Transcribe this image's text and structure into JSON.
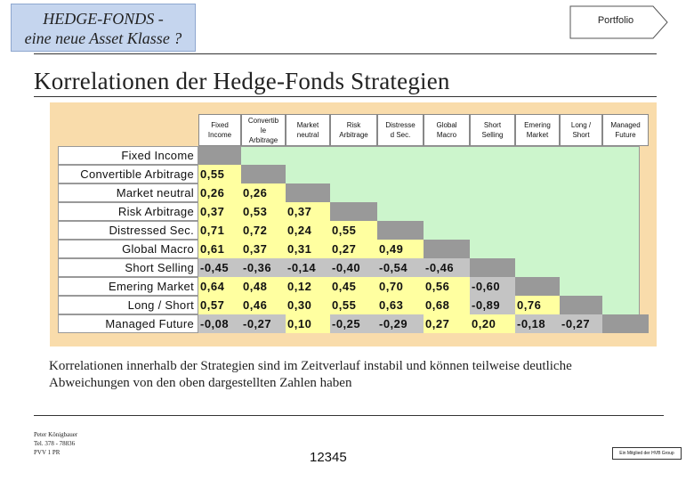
{
  "header": {
    "title_line1": "HEDGE-FONDS -",
    "title_line2": "eine neue Asset Klasse ?",
    "portfolio_label": "Portfolio"
  },
  "heading": "Korrelationen der Hedge-Fonds Strategien",
  "table": {
    "columns": [
      "Fixed\nIncome",
      "Convertib\nle\nArbitrage",
      "Market\nneutral",
      "Risk\nArbitrage",
      "Distresse\nd Sec.",
      "Global\nMacro",
      "Short\nSelling",
      "Emering\nMarket",
      "Long /\nShort",
      "Managed\nFuture"
    ],
    "rows": [
      {
        "label": "Fixed Income",
        "values": []
      },
      {
        "label": "Convertible Arbitrage",
        "values": [
          "0,55"
        ]
      },
      {
        "label": "Market neutral",
        "values": [
          "0,26",
          "0,26"
        ]
      },
      {
        "label": "Risk Arbitrage",
        "values": [
          "0,37",
          "0,53",
          "0,37"
        ]
      },
      {
        "label": "Distressed Sec.",
        "values": [
          "0,71",
          "0,72",
          "0,24",
          "0,55"
        ]
      },
      {
        "label": "Global Macro",
        "values": [
          "0,61",
          "0,37",
          "0,31",
          "0,27",
          "0,49"
        ]
      },
      {
        "label": "Short Selling",
        "values": [
          "-0,45",
          "-0,36",
          "-0,14",
          "-0,40",
          "-0,54",
          "-0,46"
        ]
      },
      {
        "label": "Emering Market",
        "values": [
          "0,64",
          "0,48",
          "0,12",
          "0,45",
          "0,70",
          "0,56",
          "-0,60"
        ]
      },
      {
        "label": "Long / Short",
        "values": [
          "0,57",
          "0,46",
          "0,30",
          "0,55",
          "0,63",
          "0,68",
          "-0,89",
          "0,76"
        ]
      },
      {
        "label": "Managed Future",
        "values": [
          "-0,08",
          "-0,27",
          "0,10",
          "-0,25",
          "-0,29",
          "0,27",
          "0,20",
          "-0,18",
          "-0,27"
        ]
      }
    ]
  },
  "note": "Korrelationen innerhalb der Strategien sind im Zeitverlauf instabil und können teilweise deutliche Abweichungen von den oben dargestellten Zahlen haben",
  "footer": {
    "author": "Peter Königbauer",
    "phone": "Tel. 378 - 78836",
    "dept": "PVV 1 PR",
    "page_number": "12345",
    "badge": "Ein Mitglied der HVB Group"
  },
  "colors": {
    "positive": "#ffffa0",
    "negative": "#c4c4c4",
    "diagonal": "#999999",
    "grid": "#ccf5cc",
    "panel": "#f9dcab"
  }
}
